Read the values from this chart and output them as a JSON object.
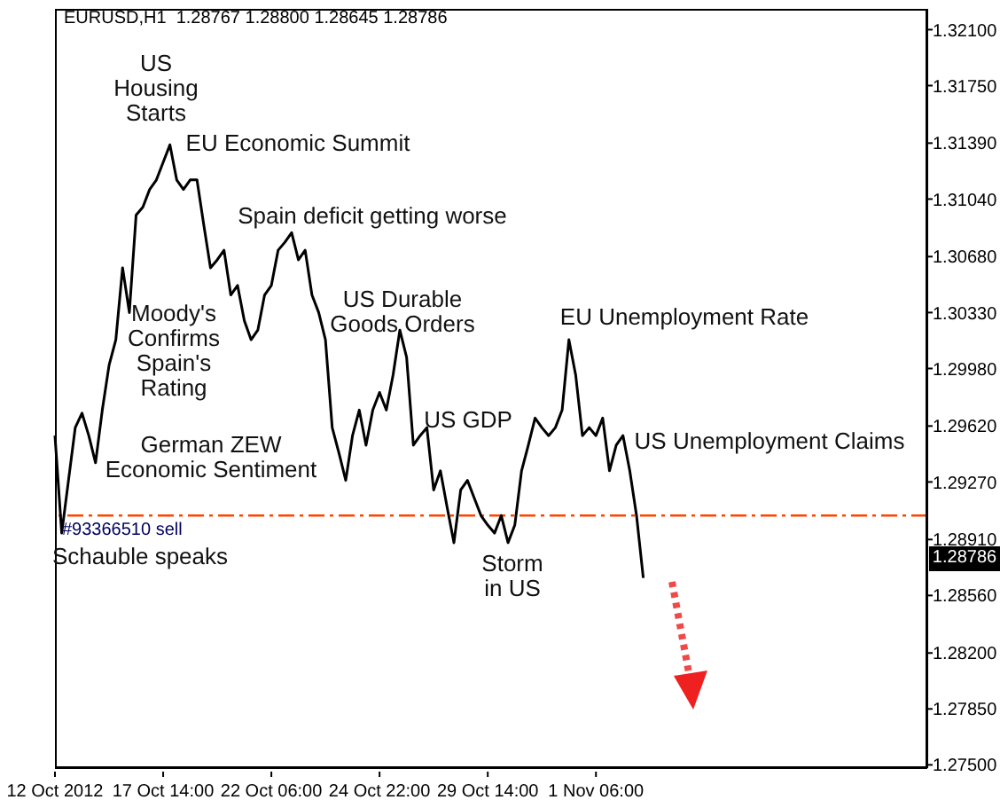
{
  "chart_data": {
    "type": "line",
    "title": "EURUSD,H1  1.28767 1.28800 1.28645 1.28786",
    "categories": [
      "12 Oct 2012",
      null,
      null,
      null,
      null,
      null,
      null,
      null,
      null,
      null,
      null,
      null,
      null,
      null,
      null,
      null,
      "17 Oct 14:00",
      null,
      null,
      null,
      null,
      null,
      null,
      null,
      null,
      null,
      null,
      null,
      null,
      null,
      null,
      null,
      "22 Oct 06:00",
      null,
      null,
      null,
      null,
      null,
      null,
      null,
      null,
      null,
      null,
      null,
      null,
      null,
      null,
      null,
      "24 Oct 22:00",
      null,
      null,
      null,
      null,
      null,
      null,
      null,
      null,
      null,
      null,
      null,
      null,
      null,
      null,
      null,
      "29 Oct 14:00",
      null,
      null,
      null,
      null,
      null,
      null,
      null,
      null,
      null,
      null,
      null,
      null,
      null,
      null,
      null,
      "1 Nov 06:00",
      null,
      null,
      null,
      null,
      null,
      null,
      null,
      null,
      null,
      null,
      null,
      null,
      null,
      null,
      null,
      null,
      null,
      null,
      null,
      null,
      null,
      null,
      null,
      null,
      null,
      null,
      null,
      null,
      null,
      null,
      null,
      null,
      null,
      null,
      null,
      null,
      null,
      null,
      null,
      null,
      null,
      null,
      null,
      null,
      null,
      null,
      null,
      null,
      null
    ],
    "series": [
      {
        "color": "#000000",
        "values": [
          1.2956,
          1.2895,
          1.2928,
          1.2961,
          1.297,
          1.2956,
          1.2939,
          1.2972,
          1.3,
          1.3016,
          1.3061,
          1.3033,
          1.3094,
          1.3099,
          1.311,
          1.3116,
          1.3127,
          1.3138,
          1.3116,
          1.311,
          1.3116,
          1.3116,
          1.3088,
          1.3061,
          1.3066,
          1.3072,
          1.3044,
          1.305,
          1.3028,
          1.3016,
          1.3022,
          1.3044,
          1.305,
          1.3072,
          1.3077,
          1.3083,
          1.3066,
          1.3072,
          1.3044,
          1.3033,
          1.3016,
          1.2961,
          1.2945,
          1.2928,
          1.2956,
          1.2972,
          1.295,
          1.2972,
          1.2983,
          1.2972,
          1.2994,
          1.3022,
          1.3005,
          1.295,
          1.2956,
          1.2961,
          1.2922,
          1.2934,
          1.2911,
          1.2889,
          1.2922,
          1.2928,
          1.2917,
          1.2906,
          1.29,
          1.2895,
          1.2906,
          1.2889,
          1.29,
          1.2934,
          1.295,
          1.2967,
          1.2961,
          1.2956,
          1.2961,
          1.2972,
          1.3016,
          1.2994,
          1.2956,
          1.2961,
          1.2956,
          1.2967,
          1.2934,
          1.295,
          1.2956,
          1.2934,
          1.2906,
          1.2867,
          null,
          null,
          null,
          null,
          null,
          null,
          null,
          null,
          null,
          null,
          null,
          null,
          null,
          null,
          null,
          null,
          null,
          null,
          null,
          null,
          null,
          null,
          null,
          null,
          null,
          null,
          null,
          null,
          null,
          null,
          null,
          null,
          null,
          null,
          null,
          null,
          null,
          null,
          null,
          null,
          null,
          null
        ]
      }
    ],
    "ylim": [
      1.2748,
      1.3223
    ],
    "yticks": [
      {
        "value": 1.321,
        "label": "1.32100"
      },
      {
        "value": 1.3175,
        "label": "1.31750"
      },
      {
        "value": 1.3139,
        "label": "1.31390"
      },
      {
        "value": 1.3104,
        "label": "1.31040"
      },
      {
        "value": 1.3068,
        "label": "1.30680"
      },
      {
        "value": 1.3033,
        "label": "1.30330"
      },
      {
        "value": 1.2998,
        "label": "1.29980"
      },
      {
        "value": 1.2962,
        "label": "1.29620"
      },
      {
        "value": 1.2927,
        "label": "1.29270"
      },
      {
        "value": 1.2891,
        "label": "1.28910"
      },
      {
        "value": 1.2856,
        "label": "1.28560"
      },
      {
        "value": 1.282,
        "label": "1.28200"
      },
      {
        "value": 1.2785,
        "label": "1.27850"
      },
      {
        "value": 1.275,
        "label": "1.27500"
      }
    ],
    "ref_lines": [
      {
        "axis": "y",
        "value": 1.2906,
        "label": "#93366510 sell",
        "color": "#ff4500",
        "line_style": "dashdot"
      }
    ],
    "annotations": [
      "US\nHousing\nStarts",
      "EU Economic Summit",
      "Spain deficit getting worse",
      "US Durable\nGoods Orders",
      "EU Unemployment Rate",
      "Moody's\nConfirms\nSpain's\nRating",
      "US GDP",
      "US Unemployment Claims",
      "German ZEW\nEconomic Sentiment",
      "Schauble speaks",
      "Storm\nin US",
      "1.28786"
    ],
    "grid": false,
    "legend": false,
    "marker": "none",
    "line_style": "solid"
  }
}
